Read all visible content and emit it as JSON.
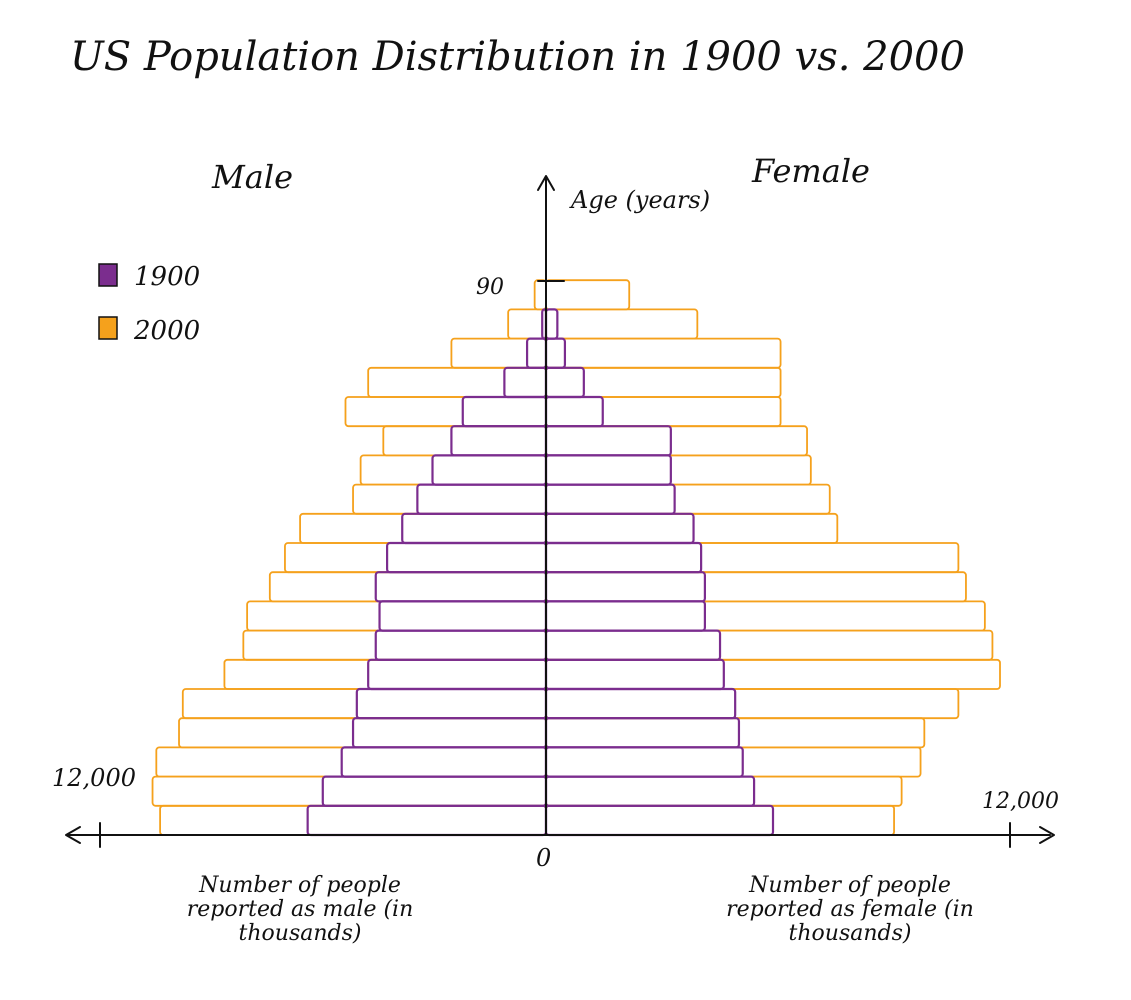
{
  "chart_data": {
    "type": "bar",
    "subtype": "population-pyramid",
    "title": "US Population Distribution in 1900 vs. 2000",
    "left_label": "Male",
    "right_label": "Female",
    "y_axis_title": "Age (years)",
    "y_tick_label": "90",
    "y_tick_value": 90,
    "x_left_label": "Number of people reported as male (in thousands)",
    "x_right_label": "Number of people reported as female (in thousands)",
    "x_left_end_label": "12,000",
    "x_right_end_label": "12,000",
    "x_origin_label": "0",
    "x_max": 12000,
    "y_range": [
      0,
      95
    ],
    "legend_position": "top-left",
    "age_groups": [
      "0-4",
      "5-9",
      "10-14",
      "15-19",
      "20-24",
      "25-29",
      "30-34",
      "35-39",
      "40-44",
      "45-49",
      "50-54",
      "55-59",
      "60-64",
      "65-69",
      "70-74",
      "75-79",
      "80-84",
      "85-89",
      "90+"
    ],
    "series": [
      {
        "name": "1900",
        "color": "#7b2d8e",
        "male": [
          6300,
          5900,
          5400,
          5100,
          5000,
          4700,
          4500,
          4400,
          4500,
          4200,
          3800,
          3400,
          3000,
          2500,
          2200,
          1100,
          500,
          100,
          0
        ],
        "female": [
          6000,
          5500,
          5200,
          5100,
          5000,
          4700,
          4600,
          4200,
          4200,
          4100,
          3900,
          3400,
          3300,
          3300,
          1500,
          1000,
          500,
          300,
          0
        ]
      },
      {
        "name": "2000",
        "color": "#f5a11c",
        "male": [
          10200,
          10400,
          10300,
          9700,
          9600,
          8500,
          8000,
          7900,
          7300,
          6900,
          6500,
          5100,
          4900,
          4300,
          5300,
          4700,
          2500,
          1000,
          300
        ],
        "female": [
          9200,
          9400,
          9900,
          10000,
          10900,
          12000,
          11800,
          11600,
          11100,
          10900,
          7700,
          7500,
          7000,
          6900,
          6200,
          6200,
          6200,
          4000,
          2200
        ]
      }
    ]
  }
}
